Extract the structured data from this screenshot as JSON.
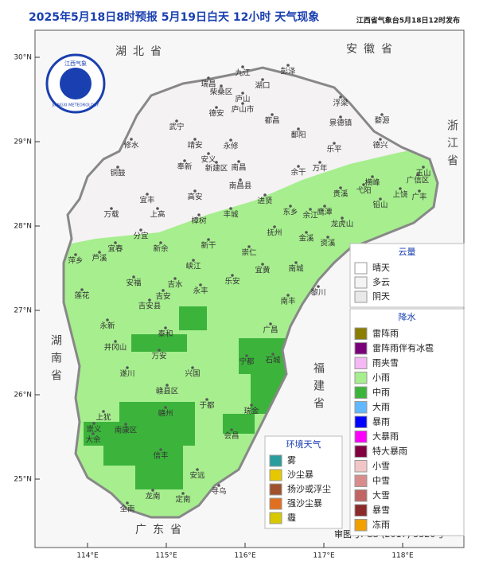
{
  "header": {
    "title": "2025年5月18日8时预报 5月19日白天 12小时 天气现象",
    "publisher": "江西省气象台5月18日12时发布"
  },
  "logo": {
    "cn": "江西气象",
    "en": "JIANGXI METEOROLOGY"
  },
  "map": {
    "xticks": [
      {
        "value": 114,
        "label": "114°E"
      },
      {
        "value": 115,
        "label": "115°E"
      },
      {
        "value": 116,
        "label": "116°E"
      },
      {
        "value": 117,
        "label": "117°E"
      },
      {
        "value": 118,
        "label": "118°E"
      }
    ],
    "yticks": [
      {
        "value": 30,
        "label": "30°N"
      },
      {
        "value": 29,
        "label": "29°N"
      },
      {
        "value": 28,
        "label": "28°N"
      },
      {
        "value": 27,
        "label": "27°N"
      },
      {
        "value": 26,
        "label": "26°N"
      },
      {
        "value": 25,
        "label": "25°N"
      }
    ],
    "provinces": [
      "湖北省",
      "安徽省",
      "浙江省",
      "福建省",
      "广东省",
      "湖南省"
    ],
    "cities": [
      "九江",
      "彭泽",
      "瑞昌",
      "柴桑区",
      "湖口",
      "庐山",
      "庐山市",
      "德安",
      "都昌",
      "浮梁",
      "景德镇",
      "武宁",
      "永修",
      "修水",
      "鄱阳",
      "婺源",
      "乐平",
      "德兴",
      "靖安",
      "奉新",
      "安义",
      "新建区",
      "南昌",
      "南昌县",
      "余干",
      "万年",
      "铜鼓",
      "宜丰",
      "高安",
      "进贤",
      "东乡",
      "余江",
      "鹰潭",
      "贵溪",
      "弋阳",
      "横峰",
      "上饶",
      "广信区",
      "玉山",
      "广丰",
      "铅山",
      "万载",
      "上高",
      "樟树",
      "丰城",
      "抚州",
      "金溪",
      "资溪",
      "龙虎山",
      "萍乡",
      "芦溪",
      "宜春",
      "分宜",
      "新余",
      "新干",
      "崇仁",
      "宜黄",
      "南城",
      "黎川",
      "莲花",
      "安福",
      "吉水",
      "永丰",
      "峡江",
      "乐安",
      "南丰",
      "吉安",
      "吉安县",
      "永新",
      "泰和",
      "井冈山",
      "万安",
      "遂川",
      "广昌",
      "宁都",
      "石城",
      "兴国",
      "赣县区",
      "于都",
      "瑞金",
      "上犹",
      "赣州",
      "崇义",
      "南康区",
      "大余",
      "信丰",
      "会昌",
      "安远",
      "龙南",
      "全南",
      "定南",
      "寻乌"
    ],
    "approval": "审图号: GS (2017) 3320号"
  },
  "legend": {
    "cloud": {
      "title": "云量",
      "items": [
        {
          "label": "晴天",
          "color": "#ffffff"
        },
        {
          "label": "多云",
          "color": "#f4f4f4"
        },
        {
          "label": "阴天",
          "color": "#e9e9e9"
        }
      ]
    },
    "precip": {
      "title": "降水",
      "items": [
        {
          "label": "雷阵雨",
          "color": "#8b7d00"
        },
        {
          "label": "雷阵雨伴有冰雹",
          "color": "#7a007a"
        },
        {
          "label": "雨夹雪",
          "color": "#f4b8f4"
        },
        {
          "label": "小雨",
          "color": "#a6ee8e"
        },
        {
          "label": "中雨",
          "color": "#3cb43c"
        },
        {
          "label": "大雨",
          "color": "#61b8ff"
        },
        {
          "label": "暴雨",
          "color": "#0000fe"
        },
        {
          "label": "大暴雨",
          "color": "#fa00fa"
        },
        {
          "label": "特大暴雨",
          "color": "#800040"
        },
        {
          "label": "小雪",
          "color": "#f2c6c6"
        },
        {
          "label": "中雪",
          "color": "#d98c8c"
        },
        {
          "label": "大雪",
          "color": "#c06464"
        },
        {
          "label": "暴雪",
          "color": "#8b2a2a"
        },
        {
          "label": "冻雨",
          "color": "#f0a000"
        }
      ]
    },
    "env": {
      "title": "环境天气",
      "items": [
        {
          "label": "雾",
          "color": "#2a9d9d"
        },
        {
          "label": "沙尘暴",
          "color": "#e6c800"
        },
        {
          "label": "扬沙或浮尘",
          "color": "#a0522d"
        },
        {
          "label": "强沙尘暴",
          "color": "#e07020"
        },
        {
          "label": "霾",
          "color": "#d8c800"
        }
      ]
    }
  }
}
